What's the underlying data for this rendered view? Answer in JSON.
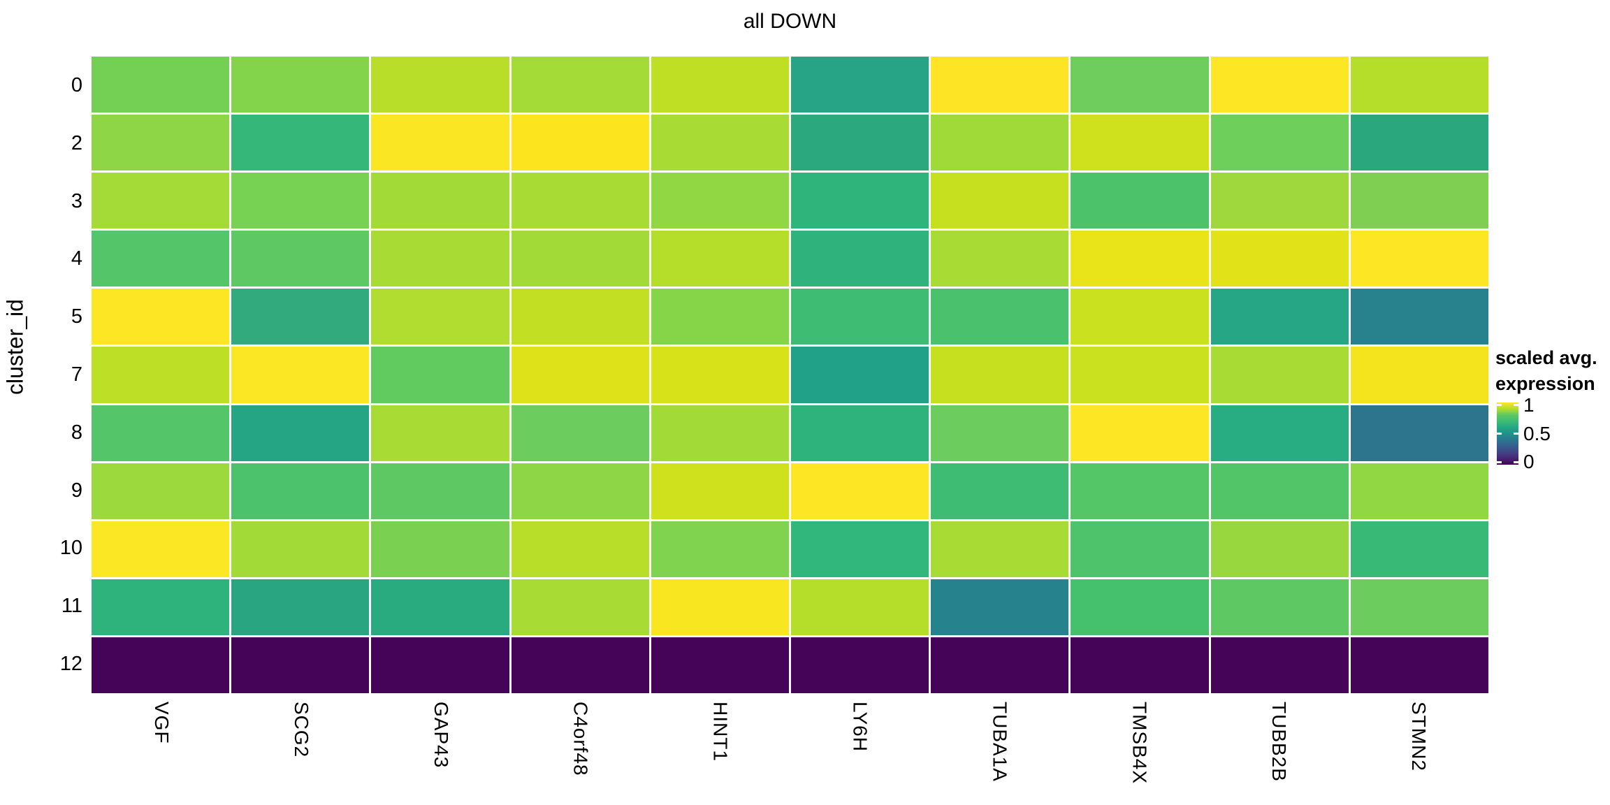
{
  "title": "all DOWN",
  "colors": {
    "background": "#ffffff",
    "grid_gap": "#ffffff",
    "text": "#000000",
    "viridis_min": "#440154",
    "viridis_mid": "#21918c",
    "viridis_max": "#fde725"
  },
  "legend": {
    "title_line1": "scaled avg.",
    "title_line2": "expression",
    "ticks": [
      {
        "label": "1",
        "pos_pct": 4
      },
      {
        "label": "0.5",
        "pos_pct": 50
      },
      {
        "label": "0",
        "pos_pct": 96
      }
    ],
    "gradient_stops_top_to_bottom": [
      "#fde725",
      "#b5de2b",
      "#5ec962",
      "#3dbc74",
      "#22a884",
      "#21918c",
      "#2a788e",
      "#355f8d",
      "#414487",
      "#482475",
      "#440154"
    ]
  },
  "chart_data": {
    "type": "heatmap",
    "title": "all DOWN",
    "xlabel": "",
    "ylabel": "cluster_id",
    "legend_title": "scaled avg. expression",
    "value_range": [
      0,
      1
    ],
    "legend_tick_values": [
      1,
      0.5,
      0
    ],
    "columns": [
      "VGF",
      "SCG2",
      "GAP43",
      "C4orf48",
      "HINT1",
      "LY6H",
      "TUBA1A",
      "TMSB4X",
      "TUBB2B",
      "STMN2"
    ],
    "rows": [
      {
        "id": "0",
        "values": [
          0.83,
          0.86,
          0.94,
          0.92,
          0.95,
          0.58,
          0.99,
          0.81,
          1.0,
          0.94
        ],
        "colors": [
          "#74d054",
          "#84d44b",
          "#b8de29",
          "#a5db36",
          "#bfdf25",
          "#27a485",
          "#fde525",
          "#6ecd5d",
          "#fde725",
          "#b5de2b"
        ]
      },
      {
        "id": "2",
        "values": [
          0.88,
          0.66,
          0.99,
          0.99,
          0.92,
          0.6,
          0.91,
          0.96,
          0.82,
          0.6
        ],
        "colors": [
          "#8ed645",
          "#35b779",
          "#fbe623",
          "#fce51f",
          "#a8db34",
          "#2ca87e",
          "#a0da39",
          "#cfe11d",
          "#6ecf5b",
          "#2ba77e"
        ]
      },
      {
        "id": "3",
        "values": [
          0.92,
          0.84,
          0.91,
          0.92,
          0.89,
          0.65,
          0.96,
          0.73,
          0.9,
          0.84
        ],
        "colors": [
          "#a5db36",
          "#77d153",
          "#a2da37",
          "#a8db34",
          "#90d743",
          "#2fb47c",
          "#c6e01f",
          "#4cc26a",
          "#9ed83c",
          "#7fcf52"
        ]
      },
      {
        "id": "4",
        "values": [
          0.75,
          0.78,
          0.92,
          0.91,
          0.94,
          0.64,
          0.92,
          0.98,
          0.97,
          1.0
        ],
        "colors": [
          "#54c568",
          "#5ec962",
          "#a8db34",
          "#a2da37",
          "#b5de2b",
          "#2fb27b",
          "#a8db34",
          "#e8e419",
          "#e1e318",
          "#fde725"
        ]
      },
      {
        "id": "5",
        "values": [
          1.0,
          0.62,
          0.93,
          0.95,
          0.87,
          0.7,
          0.73,
          0.96,
          0.59,
          0.41
        ],
        "colors": [
          "#fde725",
          "#32aa7e",
          "#b0dd2f",
          "#c2df23",
          "#86d549",
          "#3fbc73",
          "#4ac16d",
          "#cae11f",
          "#27a685",
          "#28828e"
        ]
      },
      {
        "id": "7",
        "values": [
          0.95,
          0.99,
          0.79,
          0.97,
          0.97,
          0.56,
          0.96,
          0.96,
          0.92,
          0.99
        ],
        "colors": [
          "#bddf26",
          "#fbe723",
          "#62cb5f",
          "#dde318",
          "#d8e219",
          "#21a187",
          "#c6e01f",
          "#cae11f",
          "#a8db34",
          "#f4e41d"
        ]
      },
      {
        "id": "8",
        "values": [
          0.75,
          0.58,
          0.92,
          0.81,
          0.91,
          0.64,
          0.81,
          1.0,
          0.62,
          0.37
        ],
        "colors": [
          "#54c568",
          "#26a584",
          "#a8db34",
          "#6ccd5e",
          "#a2da37",
          "#2eb37c",
          "#6ccd5e",
          "#fde725",
          "#27ad81",
          "#2d758c"
        ]
      },
      {
        "id": "9",
        "values": [
          0.9,
          0.73,
          0.78,
          0.88,
          0.96,
          1.0,
          0.7,
          0.76,
          0.75,
          0.89
        ],
        "colors": [
          "#9bd93c",
          "#4dc26c",
          "#5ec962",
          "#8ed645",
          "#cfe11c",
          "#fde725",
          "#3fbc73",
          "#55c667",
          "#52c569",
          "#90d743"
        ]
      },
      {
        "id": "10",
        "values": [
          0.99,
          0.91,
          0.84,
          0.94,
          0.85,
          0.65,
          0.92,
          0.74,
          0.9,
          0.67
        ],
        "colors": [
          "#fbe723",
          "#a2da37",
          "#7ad151",
          "#b8de29",
          "#80d34e",
          "#31b67b",
          "#a8db34",
          "#4ec36b",
          "#98d83e",
          "#38ba76"
        ]
      },
      {
        "id": "11",
        "values": [
          0.64,
          0.59,
          0.61,
          0.92,
          0.99,
          0.94,
          0.42,
          0.72,
          0.78,
          0.81
        ],
        "colors": [
          "#2eb37c",
          "#2aa581",
          "#2aab7f",
          "#a8db34",
          "#f8e621",
          "#b5de2b",
          "#26838e",
          "#45c16e",
          "#5ec962",
          "#6ccd5e"
        ]
      },
      {
        "id": "12",
        "values": [
          0,
          0,
          0,
          0,
          0,
          0,
          0,
          0,
          0,
          0
        ],
        "colors": [
          "#450457",
          "#450457",
          "#450457",
          "#450457",
          "#450457",
          "#450457",
          "#450457",
          "#450457",
          "#450457",
          "#450457"
        ]
      }
    ]
  }
}
